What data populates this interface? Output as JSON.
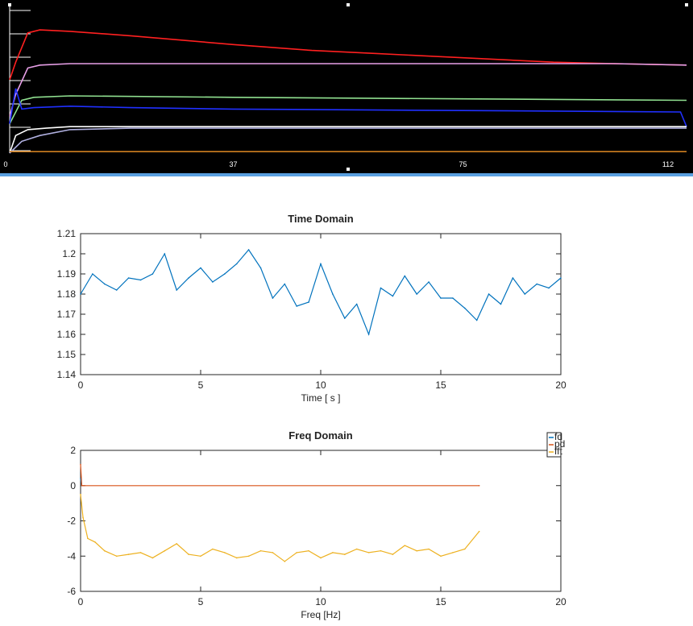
{
  "scope": {
    "x_ticks": [
      "0",
      "37",
      "75",
      "112"
    ],
    "xlim": [
      0,
      112
    ],
    "background": "#000000",
    "traces": [
      {
        "color": "#ff2020",
        "points": [
          [
            0,
            0.5
          ],
          [
            1,
            0.62
          ],
          [
            3,
            0.82
          ],
          [
            5,
            0.84
          ],
          [
            10,
            0.83
          ],
          [
            20,
            0.8
          ],
          [
            37,
            0.74
          ],
          [
            50,
            0.7
          ],
          [
            60,
            0.68
          ],
          [
            75,
            0.65
          ],
          [
            90,
            0.62
          ],
          [
            100,
            0.61
          ],
          [
            112,
            0.6
          ]
        ]
      },
      {
        "color": "#e8a0e8",
        "points": [
          [
            0,
            0.25
          ],
          [
            1,
            0.4
          ],
          [
            3,
            0.58
          ],
          [
            5,
            0.6
          ],
          [
            10,
            0.61
          ],
          [
            20,
            0.61
          ],
          [
            50,
            0.61
          ],
          [
            75,
            0.61
          ],
          [
            100,
            0.61
          ],
          [
            112,
            0.6
          ]
        ]
      },
      {
        "color": "#90e090",
        "points": [
          [
            0,
            0.2
          ],
          [
            2,
            0.36
          ],
          [
            4,
            0.38
          ],
          [
            10,
            0.39
          ],
          [
            37,
            0.38
          ],
          [
            75,
            0.37
          ],
          [
            112,
            0.36
          ]
        ]
      },
      {
        "color": "#2030ff",
        "points": [
          [
            0,
            0.2
          ],
          [
            1,
            0.44
          ],
          [
            2,
            0.3
          ],
          [
            4,
            0.31
          ],
          [
            10,
            0.32
          ],
          [
            20,
            0.31
          ],
          [
            37,
            0.3
          ],
          [
            75,
            0.29
          ],
          [
            111,
            0.28
          ],
          [
            112,
            0.18
          ]
        ]
      },
      {
        "color": "#ffffff",
        "points": [
          [
            0,
            0.0
          ],
          [
            1,
            0.12
          ],
          [
            3,
            0.16
          ],
          [
            6,
            0.17
          ],
          [
            10,
            0.18
          ],
          [
            20,
            0.18
          ],
          [
            37,
            0.18
          ],
          [
            75,
            0.18
          ],
          [
            112,
            0.18
          ]
        ]
      },
      {
        "color": "#b0b0e0",
        "points": [
          [
            0,
            0.0
          ],
          [
            2,
            0.08
          ],
          [
            5,
            0.12
          ],
          [
            10,
            0.16
          ],
          [
            20,
            0.17
          ],
          [
            112,
            0.17
          ]
        ]
      },
      {
        "color": "#d08020",
        "points": [
          [
            0,
            0.01
          ],
          [
            112,
            0.01
          ]
        ]
      }
    ]
  },
  "chart_data": [
    {
      "type": "line",
      "title": "Time Domain",
      "xlabel": "Time [ s ]",
      "ylabel": "",
      "xlim": [
        0,
        20
      ],
      "ylim": [
        1.14,
        1.21
      ],
      "x_ticks": [
        "0",
        "5",
        "10",
        "15",
        "20"
      ],
      "y_ticks": [
        "1.21",
        "1.2",
        "1.19",
        "1.18",
        "1.17",
        "1.16",
        "1.15",
        "1.14"
      ],
      "series": [
        {
          "color": "#0072bd",
          "x": [
            0,
            0.5,
            1,
            1.5,
            2,
            2.5,
            3,
            3.5,
            4,
            4.5,
            5,
            5.5,
            6,
            6.5,
            7,
            7.5,
            8,
            8.5,
            9,
            9.5,
            10,
            10.5,
            11,
            11.5,
            12,
            12.5,
            13,
            13.5,
            14,
            14.5,
            15,
            15.5,
            16,
            16.5,
            17,
            17.5,
            18,
            18.5,
            19,
            19.5,
            20
          ],
          "y": [
            1.18,
            1.19,
            1.185,
            1.182,
            1.188,
            1.187,
            1.19,
            1.2,
            1.182,
            1.188,
            1.193,
            1.186,
            1.19,
            1.195,
            1.202,
            1.193,
            1.178,
            1.185,
            1.174,
            1.176,
            1.195,
            1.18,
            1.168,
            1.175,
            1.16,
            1.183,
            1.179,
            1.189,
            1.18,
            1.186,
            1.178,
            1.178,
            1.173,
            1.167,
            1.18,
            1.175,
            1.188,
            1.18,
            1.185,
            1.183,
            1.188
          ]
        }
      ]
    },
    {
      "type": "line",
      "title": "Freq Domain",
      "xlabel": "Freq [Hz]",
      "ylabel": "",
      "xlim": [
        0,
        20
      ],
      "ylim": [
        -6,
        2
      ],
      "x_ticks": [
        "0",
        "5",
        "10",
        "15",
        "20"
      ],
      "y_ticks": [
        "2",
        "0",
        "-2",
        "-4",
        "-6"
      ],
      "legend": {
        "position": "top-right",
        "entries": [
          "fd",
          "pd",
          "fft"
        ]
      },
      "series": [
        {
          "name": "fd",
          "color": "#0072bd",
          "x": [
            0,
            0.05
          ],
          "y": [
            0.4,
            0.0
          ]
        },
        {
          "name": "pd",
          "color": "#d95319",
          "x": [
            0,
            0.05,
            0.1,
            16.6
          ],
          "y": [
            1.2,
            0.0,
            0.0,
            0.0
          ]
        },
        {
          "name": "fft",
          "color": "#edb120",
          "x": [
            0,
            0.1,
            0.3,
            0.6,
            1,
            1.5,
            2,
            2.5,
            3,
            3.5,
            4,
            4.5,
            5,
            5.5,
            6,
            6.5,
            7,
            7.5,
            8,
            8.5,
            9,
            9.5,
            10,
            10.5,
            11,
            11.5,
            12,
            12.5,
            13,
            13.5,
            14,
            14.5,
            15,
            15.5,
            16,
            16.6
          ],
          "y": [
            -0.5,
            -1.8,
            -3.0,
            -3.2,
            -3.7,
            -4.0,
            -3.9,
            -3.8,
            -4.1,
            -3.7,
            -3.3,
            -3.9,
            -4.0,
            -3.6,
            -3.8,
            -4.1,
            -4.0,
            -3.7,
            -3.8,
            -4.3,
            -3.8,
            -3.7,
            -4.1,
            -3.8,
            -3.9,
            -3.6,
            -3.8,
            -3.7,
            -3.9,
            -3.4,
            -3.7,
            -3.6,
            -4.0,
            -3.8,
            -3.6,
            -2.6
          ]
        }
      ]
    }
  ]
}
